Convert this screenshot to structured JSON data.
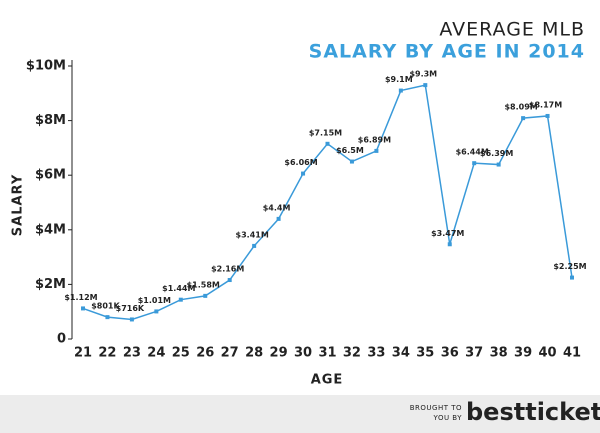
{
  "chart_data": {
    "type": "line",
    "title": "AVERAGE MLB",
    "subtitle": "SALARY BY AGE IN 2014",
    "x_label": "AGE",
    "y_label": "SALARY",
    "categories": [
      "21",
      "22",
      "23",
      "24",
      "25",
      "26",
      "27",
      "28",
      "29",
      "30",
      "31",
      "32",
      "33",
      "34",
      "35",
      "36",
      "37",
      "38",
      "39",
      "40",
      "41"
    ],
    "values": [
      1120000,
      801000,
      716000,
      1010000,
      1440000,
      1580000,
      2160000,
      3410000,
      4400000,
      6060000,
      7150000,
      6500000,
      6890000,
      9100000,
      9300000,
      3470000,
      6440000,
      6390000,
      8090000,
      8170000,
      2250000
    ],
    "value_labels": [
      "$1.12M",
      "$801K",
      "$716K",
      "$1.01M",
      "$1.44M",
      "$1.58M",
      "$2.16M",
      "$3.41M",
      "$4.4M",
      "$6.06M",
      "$7.15M",
      "$6.5M",
      "$6.89M",
      "$9.1M",
      "$9.3M",
      "$3.47M",
      "$6.44M",
      "$6.39M",
      "$8.09M",
      "$8.17M",
      "$2.25M"
    ],
    "color": "#3a9ad9",
    "ylim": [
      0,
      10000000
    ],
    "yticks": [
      0,
      {
        "value": 2000000,
        "label": "$2M"
      },
      {
        "value": 4000000,
        "label": "$4M"
      },
      {
        "value": 6000000,
        "label": "$6M"
      },
      {
        "value": 8000000,
        "label": "$8M"
      },
      {
        "value": 10000000,
        "label": "$10M"
      }
    ],
    "footer": {
      "lines": [
        "BROUGHT TO",
        "YOU BY"
      ],
      "brand": "besttickets"
    }
  }
}
